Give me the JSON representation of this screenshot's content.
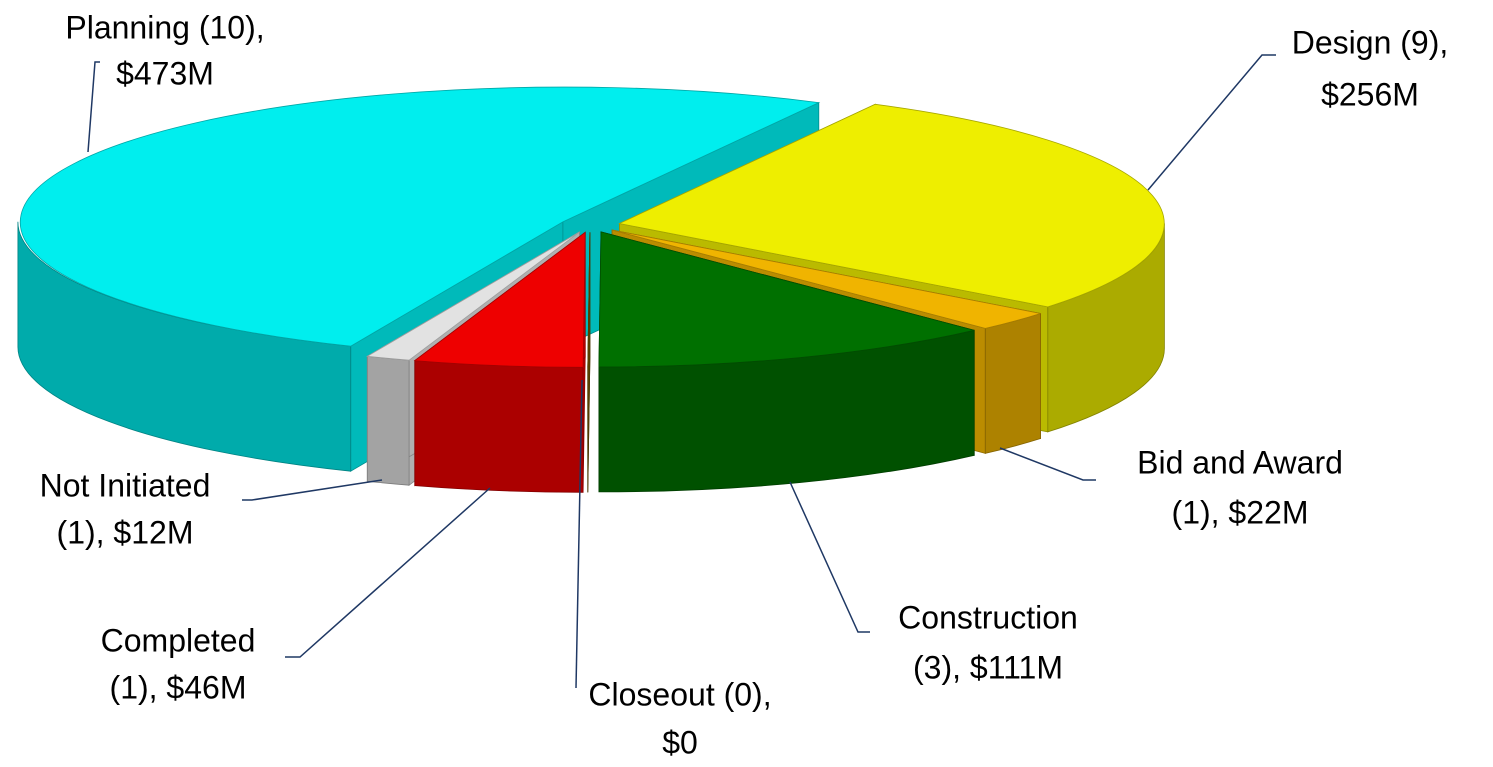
{
  "chart_data": {
    "type": "pie",
    "labels": [
      [
        "Design (9),",
        "$256M"
      ],
      [
        "Bid and Award",
        "(1), $22M"
      ],
      [
        "Construction",
        "(3), $111M"
      ],
      [
        "Closeout (0),",
        "$0"
      ],
      [
        "Completed",
        "(1), $46M"
      ],
      [
        "Not Initiated",
        "(1), $12M"
      ],
      [
        "Planning (10),",
        "$473M"
      ]
    ],
    "values": [
      256,
      22,
      111,
      0,
      46,
      12,
      473
    ],
    "colors": [
      "#eeee00",
      "#f0b400",
      "#007000",
      "#7a5a00",
      "#ee0000",
      "#e2e2e2",
      "#00eeee"
    ]
  }
}
